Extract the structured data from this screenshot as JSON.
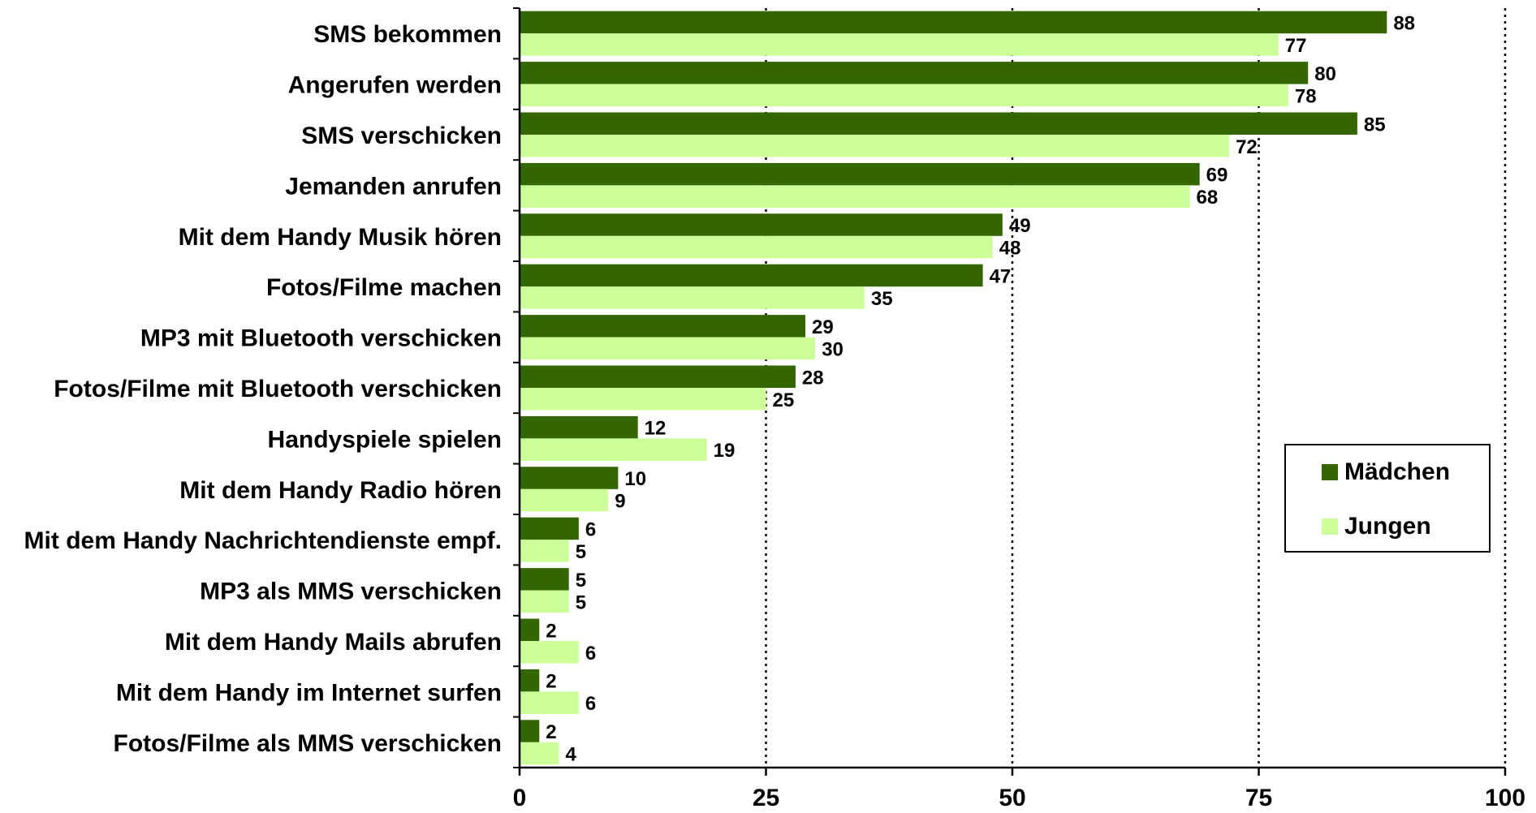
{
  "chart_data": {
    "type": "bar",
    "orientation": "horizontal",
    "categories": [
      "SMS bekommen",
      "Angerufen werden",
      "SMS verschicken",
      "Jemanden anrufen",
      "Mit dem Handy Musik hören",
      "Fotos/Filme machen",
      "MP3 mit Bluetooth verschicken",
      "Fotos/Filme mit Bluetooth verschicken",
      "Handyspiele spielen",
      "Mit dem Handy Radio hören",
      "Mit dem Handy Nachrichtendienste empf.",
      "MP3 als MMS verschicken",
      "Mit dem Handy Mails abrufen",
      "Mit dem Handy im Internet surfen",
      "Fotos/Filme als MMS verschicken"
    ],
    "series": [
      {
        "name": "Mädchen",
        "color": "#336600",
        "values": [
          88,
          80,
          85,
          69,
          49,
          47,
          29,
          28,
          12,
          10,
          6,
          5,
          2,
          2,
          2
        ]
      },
      {
        "name": "Jungen",
        "color": "#ccff99",
        "values": [
          77,
          78,
          72,
          68,
          48,
          35,
          30,
          25,
          19,
          9,
          5,
          5,
          6,
          6,
          4
        ]
      }
    ],
    "xlim": [
      0,
      100
    ],
    "xticks": [
      0,
      25,
      50,
      75,
      100
    ],
    "grid": "vertical-dotted",
    "legend_position": "right"
  }
}
